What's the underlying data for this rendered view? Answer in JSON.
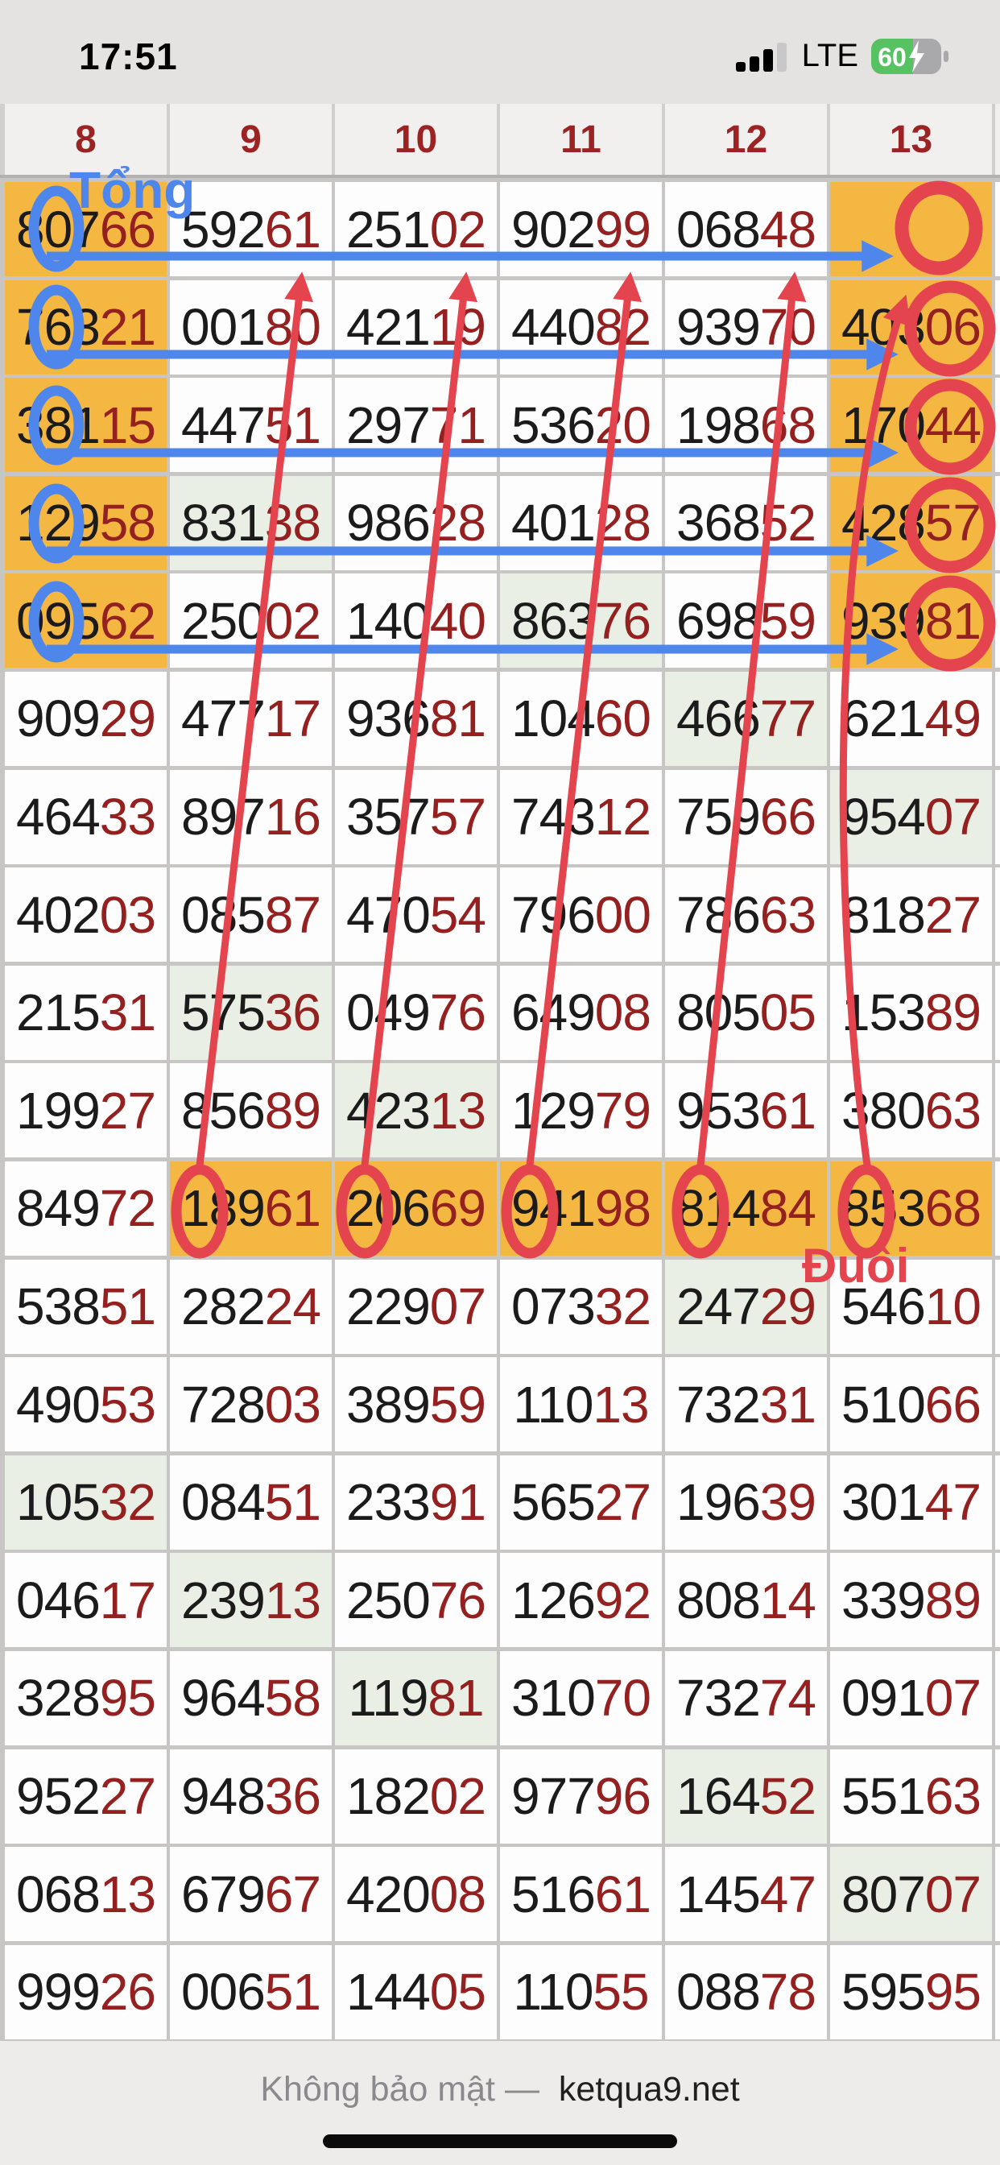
{
  "status_bar": {
    "time": "17:51",
    "network": "LTE",
    "battery_percent": "60",
    "battery_charging": true,
    "signal_bars_filled": 3,
    "signal_bars_total": 4
  },
  "table": {
    "columns": [
      "8",
      "9",
      "10",
      "11",
      "12",
      "13"
    ],
    "rows": [
      {
        "cells": [
          {
            "v": "80766",
            "h": "o"
          },
          {
            "v": "59261",
            "h": ""
          },
          {
            "v": "25102",
            "h": ""
          },
          {
            "v": "90299",
            "h": ""
          },
          {
            "v": "06848",
            "h": ""
          },
          {
            "v": "",
            "h": "o"
          }
        ]
      },
      {
        "cells": [
          {
            "v": "76321",
            "h": "o"
          },
          {
            "v": "00180",
            "h": ""
          },
          {
            "v": "42119",
            "h": ""
          },
          {
            "v": "44082",
            "h": ""
          },
          {
            "v": "93970",
            "h": ""
          },
          {
            "v": "40306",
            "h": "o"
          }
        ]
      },
      {
        "cells": [
          {
            "v": "38115",
            "h": "o"
          },
          {
            "v": "44751",
            "h": ""
          },
          {
            "v": "29771",
            "h": ""
          },
          {
            "v": "53620",
            "h": ""
          },
          {
            "v": "19868",
            "h": ""
          },
          {
            "v": "17044",
            "h": "o"
          }
        ]
      },
      {
        "cells": [
          {
            "v": "12958",
            "h": "o"
          },
          {
            "v": "83138",
            "h": "g"
          },
          {
            "v": "98628",
            "h": ""
          },
          {
            "v": "40128",
            "h": ""
          },
          {
            "v": "36852",
            "h": ""
          },
          {
            "v": "42857",
            "h": "o"
          }
        ]
      },
      {
        "cells": [
          {
            "v": "09562",
            "h": "o"
          },
          {
            "v": "25002",
            "h": ""
          },
          {
            "v": "14040",
            "h": ""
          },
          {
            "v": "86376",
            "h": "g"
          },
          {
            "v": "69859",
            "h": ""
          },
          {
            "v": "93981",
            "h": "o"
          }
        ]
      },
      {
        "cells": [
          {
            "v": "90929",
            "h": ""
          },
          {
            "v": "47717",
            "h": ""
          },
          {
            "v": "93681",
            "h": ""
          },
          {
            "v": "10460",
            "h": ""
          },
          {
            "v": "46677",
            "h": "g"
          },
          {
            "v": "62149",
            "h": ""
          }
        ]
      },
      {
        "cells": [
          {
            "v": "46433",
            "h": ""
          },
          {
            "v": "89716",
            "h": ""
          },
          {
            "v": "35757",
            "h": ""
          },
          {
            "v": "74312",
            "h": ""
          },
          {
            "v": "75966",
            "h": ""
          },
          {
            "v": "95407",
            "h": "g"
          }
        ]
      },
      {
        "cells": [
          {
            "v": "40203",
            "h": ""
          },
          {
            "v": "08587",
            "h": ""
          },
          {
            "v": "47054",
            "h": ""
          },
          {
            "v": "79600",
            "h": ""
          },
          {
            "v": "78663",
            "h": ""
          },
          {
            "v": "81827",
            "h": ""
          }
        ]
      },
      {
        "cells": [
          {
            "v": "21531",
            "h": ""
          },
          {
            "v": "57536",
            "h": "g"
          },
          {
            "v": "04976",
            "h": ""
          },
          {
            "v": "64908",
            "h": ""
          },
          {
            "v": "80505",
            "h": ""
          },
          {
            "v": "15389",
            "h": ""
          }
        ]
      },
      {
        "cells": [
          {
            "v": "19927",
            "h": ""
          },
          {
            "v": "85689",
            "h": ""
          },
          {
            "v": "42313",
            "h": "g"
          },
          {
            "v": "12979",
            "h": ""
          },
          {
            "v": "95361",
            "h": ""
          },
          {
            "v": "38063",
            "h": ""
          }
        ]
      },
      {
        "cells": [
          {
            "v": "84972",
            "h": ""
          },
          {
            "v": "18961",
            "h": "o"
          },
          {
            "v": "20669",
            "h": "o"
          },
          {
            "v": "94198",
            "h": "o"
          },
          {
            "v": "81484",
            "h": "o"
          },
          {
            "v": "85368",
            "h": "o"
          }
        ]
      },
      {
        "cells": [
          {
            "v": "53851",
            "h": ""
          },
          {
            "v": "28224",
            "h": ""
          },
          {
            "v": "22907",
            "h": ""
          },
          {
            "v": "07332",
            "h": ""
          },
          {
            "v": "24729",
            "h": "g"
          },
          {
            "v": "54610",
            "h": ""
          }
        ]
      },
      {
        "cells": [
          {
            "v": "49053",
            "h": ""
          },
          {
            "v": "72803",
            "h": ""
          },
          {
            "v": "38959",
            "h": ""
          },
          {
            "v": "11013",
            "h": ""
          },
          {
            "v": "73231",
            "h": ""
          },
          {
            "v": "51066",
            "h": ""
          }
        ]
      },
      {
        "cells": [
          {
            "v": "10532",
            "h": "g"
          },
          {
            "v": "08451",
            "h": ""
          },
          {
            "v": "23391",
            "h": ""
          },
          {
            "v": "56527",
            "h": ""
          },
          {
            "v": "19639",
            "h": ""
          },
          {
            "v": "30147",
            "h": ""
          }
        ]
      },
      {
        "cells": [
          {
            "v": "04617",
            "h": ""
          },
          {
            "v": "23913",
            "h": "g"
          },
          {
            "v": "25076",
            "h": ""
          },
          {
            "v": "12692",
            "h": ""
          },
          {
            "v": "80814",
            "h": ""
          },
          {
            "v": "33989",
            "h": ""
          }
        ]
      },
      {
        "cells": [
          {
            "v": "32895",
            "h": ""
          },
          {
            "v": "96458",
            "h": ""
          },
          {
            "v": "11981",
            "h": "g"
          },
          {
            "v": "31070",
            "h": ""
          },
          {
            "v": "73274",
            "h": ""
          },
          {
            "v": "09107",
            "h": ""
          }
        ]
      },
      {
        "cells": [
          {
            "v": "95227",
            "h": ""
          },
          {
            "v": "94836",
            "h": ""
          },
          {
            "v": "18202",
            "h": ""
          },
          {
            "v": "97796",
            "h": ""
          },
          {
            "v": "16452",
            "h": "g"
          },
          {
            "v": "55163",
            "h": ""
          }
        ]
      },
      {
        "cells": [
          {
            "v": "06813",
            "h": ""
          },
          {
            "v": "67967",
            "h": ""
          },
          {
            "v": "42008",
            "h": ""
          },
          {
            "v": "51661",
            "h": ""
          },
          {
            "v": "14547",
            "h": ""
          },
          {
            "v": "80707",
            "h": "g"
          }
        ]
      },
      {
        "cells": [
          {
            "v": "99926",
            "h": ""
          },
          {
            "v": "00651",
            "h": ""
          },
          {
            "v": "14405",
            "h": ""
          },
          {
            "v": "11055",
            "h": ""
          },
          {
            "v": "08878",
            "h": ""
          },
          {
            "v": "59595",
            "h": ""
          }
        ]
      }
    ]
  },
  "colors": {
    "orange_highlight": "#f3b742",
    "green_highlight": "#e9efe4",
    "number_black": "#1b1b1b",
    "number_red": "#942020",
    "header_red": "#9b2323"
  },
  "annotations": {
    "tong_label": "Tổng",
    "duoi_label": "Đuôi",
    "blue_color": "#4f86ec",
    "red_color": "#e4444e"
  },
  "footer": {
    "security_text": "Không bảo mật —",
    "domain": "ketqua9.net"
  }
}
